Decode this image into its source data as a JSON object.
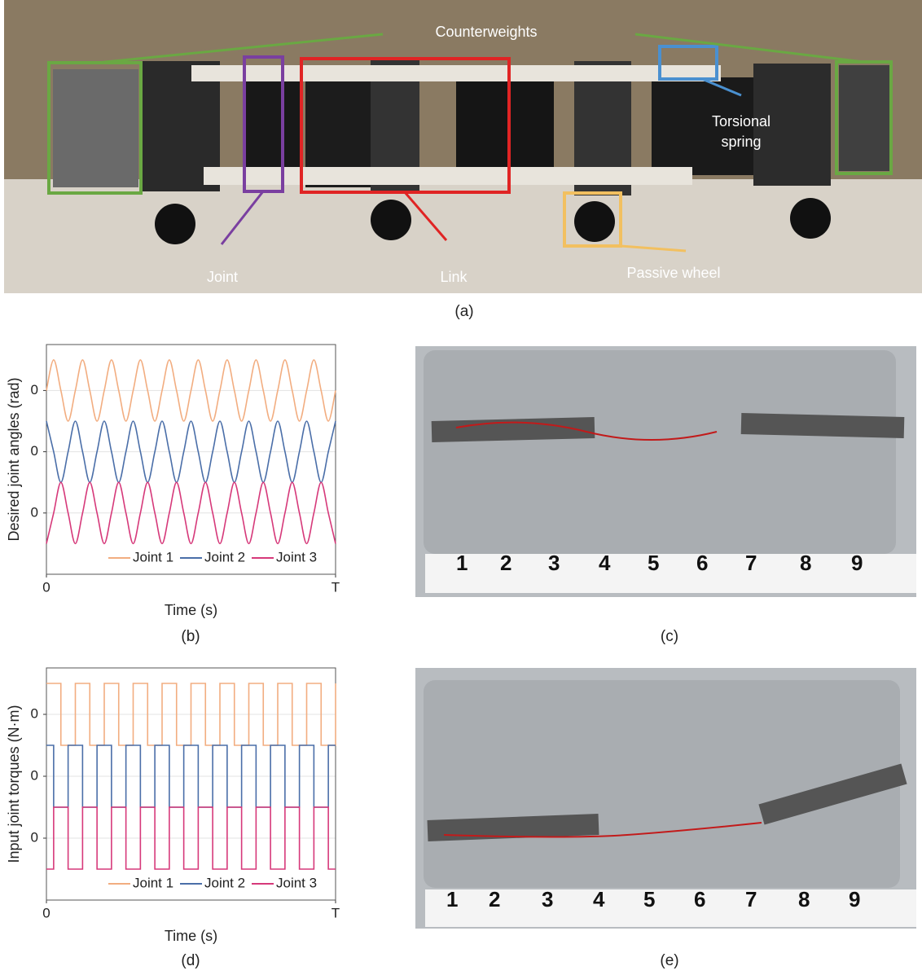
{
  "captions": [
    "(a)",
    "(b)",
    "(c)",
    "(d)",
    "(e)"
  ],
  "photo_a": {
    "labels": [
      "Counterweights",
      "Torsional",
      "spring",
      "Joint",
      "Link",
      "Passive wheel"
    ]
  },
  "photo_c": {
    "ruler": [
      "1",
      "2",
      "3",
      "4",
      "5",
      "6",
      "7",
      "8",
      "9"
    ]
  },
  "photo_e": {
    "ruler": [
      "1",
      "2",
      "3",
      "4",
      "5",
      "6",
      "7",
      "8",
      "9"
    ]
  },
  "chart_data": [
    {
      "type": "line",
      "y_label": "Desired joint angles (rad)",
      "x_label": "Time (s)",
      "x": [
        0,
        0.025,
        0.05,
        0.075,
        0.1,
        0.125,
        0.15,
        0.175,
        0.2,
        0.225,
        0.25,
        0.275,
        0.3,
        0.325,
        0.35,
        0.375,
        0.4,
        0.425,
        0.45,
        0.475,
        0.5,
        0.525,
        0.55,
        0.575,
        0.6,
        0.625,
        0.65,
        0.675,
        0.7,
        0.725,
        0.75,
        0.775,
        0.8,
        0.825,
        0.85,
        0.875,
        0.9,
        0.925,
        0.95,
        0.975,
        1
      ],
      "series": [
        {
          "name": "Joint 1",
          "color": "#f2ad80",
          "values": [
            4,
            5,
            4,
            3,
            4,
            5,
            4,
            3,
            4,
            5,
            4,
            3,
            4,
            5,
            4,
            3,
            4,
            5,
            4,
            3,
            4,
            5,
            4,
            3,
            4,
            5,
            4,
            3,
            4,
            5,
            4,
            3,
            4,
            5,
            4,
            3,
            4,
            5,
            4,
            3,
            4
          ]
        },
        {
          "name": "Joint 2",
          "color": "#4a6ea8",
          "values": [
            3,
            2,
            1,
            2,
            3,
            2,
            1,
            2,
            3,
            2,
            1,
            2,
            3,
            2,
            1,
            2,
            3,
            2,
            1,
            2,
            3,
            2,
            1,
            2,
            3,
            2,
            1,
            2,
            3,
            2,
            1,
            2,
            3,
            2,
            1,
            2,
            3,
            2,
            1,
            2,
            3
          ]
        },
        {
          "name": "Joint 3",
          "color": "#d6397a",
          "values": [
            -1,
            0,
            1,
            0,
            -1,
            0,
            1,
            0,
            -1,
            0,
            1,
            0,
            -1,
            0,
            1,
            0,
            -1,
            0,
            1,
            0,
            -1,
            0,
            1,
            0,
            -1,
            0,
            1,
            0,
            -1,
            0,
            1,
            0,
            -1,
            0,
            1,
            0,
            -1,
            0,
            1,
            0,
            -1
          ]
        }
      ],
      "xlim": [
        0,
        1
      ],
      "xticks": [
        0,
        {
          "value": 1,
          "label": "T"
        }
      ],
      "ylim": [
        -2,
        5.5
      ],
      "yticks": [
        {
          "value": 4,
          "label": "0"
        },
        {
          "value": 2,
          "label": "0"
        },
        {
          "value": 0,
          "label": "0"
        }
      ],
      "grid": true,
      "legend": "lower center"
    },
    {
      "type": "step",
      "y_label": "Input joint torques (N·m)",
      "x_label": "Time (s)",
      "x": [
        0,
        0.025,
        0.05,
        0.075,
        0.1,
        0.125,
        0.15,
        0.175,
        0.2,
        0.225,
        0.25,
        0.275,
        0.3,
        0.325,
        0.35,
        0.375,
        0.4,
        0.425,
        0.45,
        0.475,
        0.5,
        0.525,
        0.55,
        0.575,
        0.6,
        0.625,
        0.65,
        0.675,
        0.7,
        0.725,
        0.75,
        0.775,
        0.8,
        0.825,
        0.85,
        0.875,
        0.9,
        0.925,
        0.95,
        0.975,
        1
      ],
      "series": [
        {
          "name": "Joint 1",
          "color": "#f2ad80",
          "values": [
            5,
            5,
            3,
            3,
            5,
            5,
            3,
            3,
            5,
            5,
            3,
            3,
            5,
            5,
            3,
            3,
            5,
            5,
            3,
            3,
            5,
            5,
            3,
            3,
            5,
            5,
            3,
            3,
            5,
            5,
            3,
            3,
            5,
            5,
            3,
            3,
            5,
            5,
            3,
            3,
            5
          ]
        },
        {
          "name": "Joint 2",
          "color": "#4a6ea8",
          "values": [
            3,
            1,
            1,
            3,
            3,
            1,
            1,
            3,
            3,
            1,
            1,
            3,
            3,
            1,
            1,
            3,
            3,
            1,
            1,
            3,
            3,
            1,
            1,
            3,
            3,
            1,
            1,
            3,
            3,
            1,
            1,
            3,
            3,
            1,
            1,
            3,
            3,
            1,
            1,
            3,
            3
          ]
        },
        {
          "name": "Joint 3",
          "color": "#d6397a",
          "values": [
            -1,
            1,
            1,
            -1,
            -1,
            1,
            1,
            -1,
            -1,
            1,
            1,
            -1,
            -1,
            1,
            1,
            -1,
            -1,
            1,
            1,
            -1,
            -1,
            1,
            1,
            -1,
            -1,
            1,
            1,
            -1,
            -1,
            1,
            1,
            -1,
            -1,
            1,
            1,
            -1,
            -1,
            1,
            1,
            -1,
            -1
          ]
        }
      ],
      "xlim": [
        0,
        1
      ],
      "xticks": [
        0,
        {
          "value": 1,
          "label": "T"
        }
      ],
      "ylim": [
        -2,
        5.5
      ],
      "yticks": [
        {
          "value": 4,
          "label": "0"
        },
        {
          "value": 2,
          "label": "0"
        },
        {
          "value": 0,
          "label": "0"
        }
      ],
      "grid": true,
      "legend": "lower center"
    }
  ]
}
